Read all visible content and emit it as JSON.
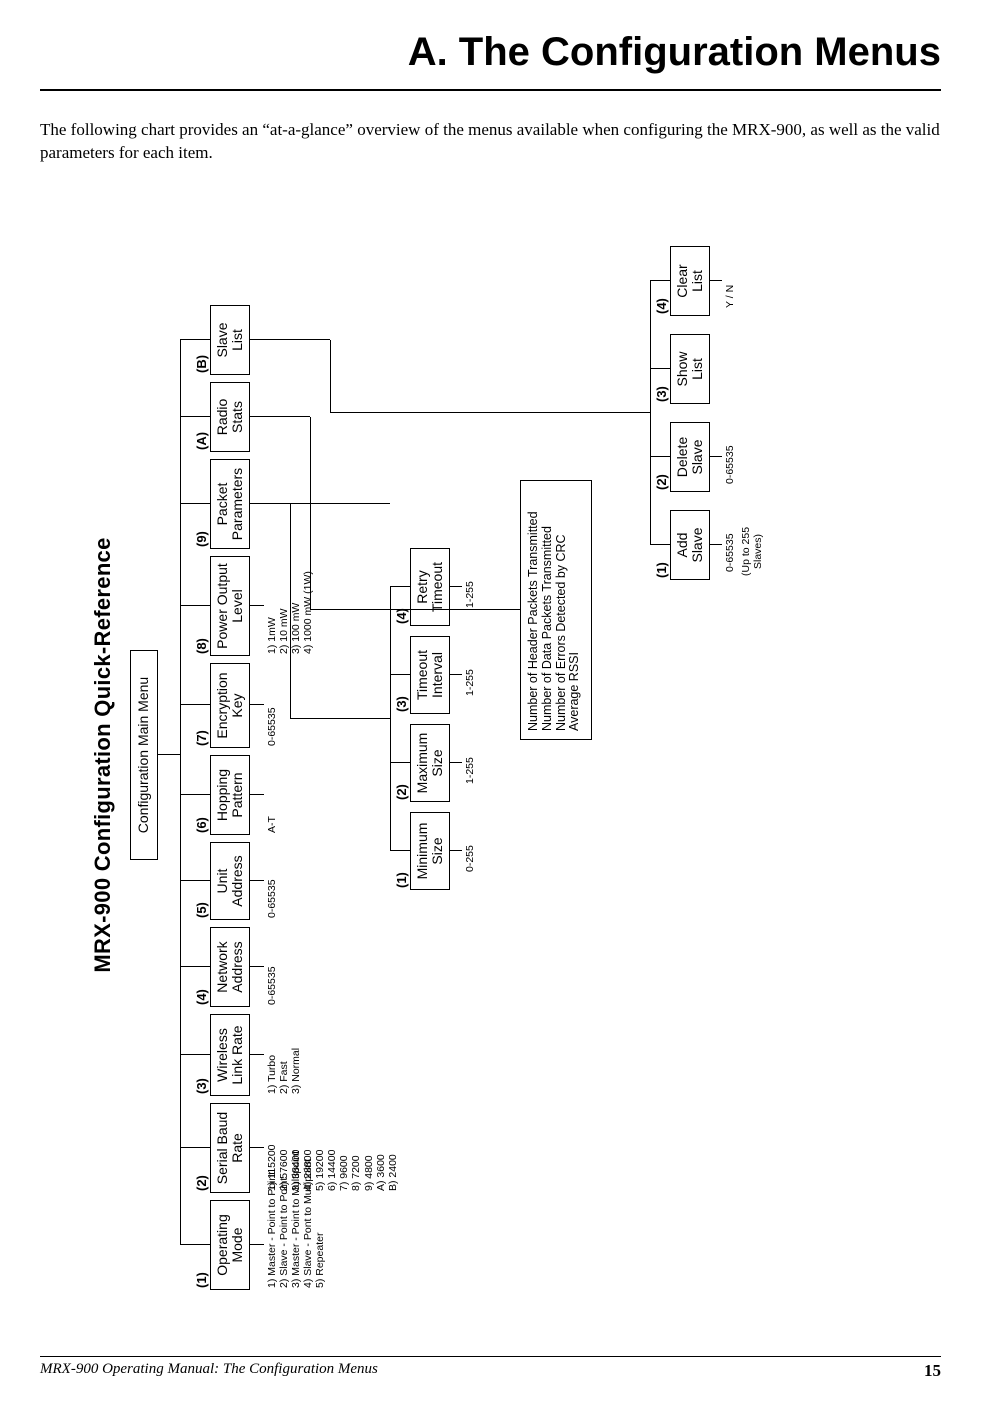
{
  "title": "A. The Configuration Menus",
  "intro": "The following chart provides an “at-a-glance” overview of the menus available when configuring the MRX-900, as well as the valid parameters for each item.",
  "footer_left": "MRX-900 Operating Manual: The Configuration Menus",
  "footer_page": "15",
  "diagram": {
    "qr_title": "MRX-900 Configuration Quick-Reference",
    "root": "Configuration Main Menu",
    "top": [
      {
        "num": "(1)",
        "l1": "Operating",
        "l2": "Mode",
        "opts": "1) Master - Point to Point\n2) Slave - Point to Point\n3) Master - Point to Multipoint\n4) Slave - Pont to Multipoint\n5) Repeater"
      },
      {
        "num": "(2)",
        "l1": "Serial Baud",
        "l2": "Rate",
        "opts": "1) 115200\n2) 57600\n3) 38400\n4) 28800\n5) 19200\n6) 14400\n7) 9600\n8) 7200\n9) 4800\nA) 3600\nB) 2400"
      },
      {
        "num": "(3)",
        "l1": "Wireless",
        "l2": "Link Rate",
        "opts": "1) Turbo\n2) Fast\n3) Normal"
      },
      {
        "num": "(4)",
        "l1": "Network",
        "l2": "Address",
        "opts": "0-65535"
      },
      {
        "num": "(5)",
        "l1": "Unit",
        "l2": "Address",
        "opts": "0-65535"
      },
      {
        "num": "(6)",
        "l1": "Hopping",
        "l2": "Pattern",
        "opts": "A-T"
      },
      {
        "num": "(7)",
        "l1": "Encryption",
        "l2": "Key",
        "opts": "0-65535"
      },
      {
        "num": "(8)",
        "l1": "Power Output",
        "l2": "Level",
        "opts": "1) 1mW\n2) 10 mW\n3) 100 mW\n4) 1000 mW (1W)"
      },
      {
        "num": "(9)",
        "l1": "Packet",
        "l2": "Parameters"
      },
      {
        "num": "(A)",
        "l1": "Radio",
        "l2": "Stats"
      },
      {
        "num": "(B)",
        "l1": "Slave",
        "l2": "List"
      }
    ],
    "packet_params": [
      {
        "num": "(1)",
        "l1": "Minimum",
        "l2": "Size",
        "opts": "0-255"
      },
      {
        "num": "(2)",
        "l1": "Maximum",
        "l2": "Size",
        "opts": "1-255"
      },
      {
        "num": "(3)",
        "l1": "Timeout",
        "l2": "Interval",
        "opts": "1-255"
      },
      {
        "num": "(4)",
        "l1": "Retry",
        "l2": "Timeout",
        "opts": "1-255"
      }
    ],
    "radio_stats": "Number of Header Packets Transmitted\nNumber of Data Packets Transmitted\nNumber of Errors Detected by CRC\nAverage RSSI",
    "slave_list": [
      {
        "num": "(1)",
        "l1": "Add",
        "l2": "Slave",
        "opts": "0-65535",
        "ext": "(Up to 255\nSlaves)"
      },
      {
        "num": "(2)",
        "l1": "Delete",
        "l2": "Slave",
        "opts": "0-65535"
      },
      {
        "num": "(3)",
        "l1": "Show",
        "l2": "List"
      },
      {
        "num": "(4)",
        "l1": "Clear",
        "l2": "List",
        "opts": "Y / N"
      }
    ]
  }
}
